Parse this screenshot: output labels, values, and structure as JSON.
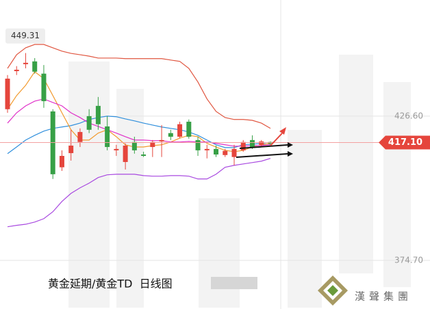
{
  "chart_data": {
    "type": "candlestick",
    "categories": [
      null,
      null,
      null,
      null,
      null,
      null,
      null,
      null,
      null,
      null,
      null,
      null,
      null,
      null,
      null,
      null,
      null,
      null,
      null,
      null,
      null,
      null,
      null,
      null,
      null,
      null,
      null,
      null,
      null,
      null
    ],
    "open": [
      429.1,
      442.8,
      445.3,
      446.3,
      441.9,
      428.3,
      408.2,
      413.3,
      417.3,
      426.6,
      430.3,
      422.9,
      414.3,
      410.1,
      417.3,
      412.8,
      415.5,
      417.5,
      420.5,
      419.2,
      424.6,
      418.0,
      414.3,
      414.8,
      412.6,
      411.9,
      414.3,
      418.0,
      416.3,
      417.3
    ],
    "high": [
      441.4,
      444.6,
      449.31,
      447.5,
      445.0,
      429.1,
      414.3,
      421.7,
      422.2,
      429.1,
      433.5,
      426.6,
      416.3,
      416.8,
      419.2,
      413.8,
      418.0,
      423.4,
      421.7,
      424.6,
      425.4,
      419.2,
      416.3,
      416.0,
      414.8,
      416.3,
      418.0,
      419.7,
      418.0,
      417.5
    ],
    "low": [
      427.8,
      441.4,
      443.8,
      441.9,
      429.6,
      404.0,
      406.9,
      410.6,
      415.5,
      420.5,
      421.7,
      414.3,
      412.3,
      407.4,
      413.1,
      411.9,
      411.9,
      411.9,
      418.0,
      418.7,
      418.5,
      412.3,
      411.4,
      411.9,
      411.9,
      408.9,
      413.8,
      414.8,
      415.8,
      416.3
    ],
    "close": [
      440.1,
      443.3,
      445.8,
      442.6,
      432.0,
      405.7,
      412.3,
      416.0,
      420.9,
      421.7,
      423.7,
      415.5,
      414.8,
      416.0,
      414.3,
      412.3,
      417.3,
      418.0,
      419.2,
      423.7,
      419.2,
      414.3,
      414.8,
      412.8,
      414.1,
      414.8,
      417.3,
      415.5,
      417.5,
      416.8
    ],
    "up_color": "#e5453c",
    "down_color": "#37a046",
    "overlays": [
      {
        "color": "#e0553f",
        "values": [
          443.8,
          448.7,
          451.2,
          452.4,
          452.4,
          451.2,
          450.0,
          449.2,
          448.7,
          448.2,
          447.5,
          447.5,
          447.5,
          447.3,
          447.3,
          447.3,
          447.3,
          447.3,
          446.8,
          446.3,
          443.8,
          438.9,
          432.8,
          428.3,
          426.1,
          425.4,
          425.4,
          425.1,
          424.1,
          422.2
        ]
      },
      {
        "color": "#2f8fdc",
        "values": [
          413.1,
          415.5,
          418.0,
          419.7,
          421.2,
          422.2,
          422.7,
          423.2,
          424.1,
          425.4,
          426.1,
          426.6,
          426.4,
          425.6,
          424.9,
          424.1,
          423.4,
          422.7,
          422.2,
          421.7,
          420.9,
          419.7,
          418.0,
          416.3,
          415.3,
          415.3,
          416.3,
          416.5,
          416.8,
          416.5
        ]
      },
      {
        "color": "#a848e0",
        "values": [
          386.8,
          387.3,
          387.7,
          388.5,
          389.7,
          392.2,
          395.9,
          398.8,
          400.8,
          402.5,
          404.5,
          405.5,
          405.7,
          405.7,
          405.7,
          405.2,
          405.0,
          405.0,
          405.2,
          405.2,
          405.0,
          404.0,
          404.0,
          405.7,
          408.2,
          408.9,
          409.4,
          409.9,
          410.4,
          411.4
        ]
      },
      {
        "color": "#f29a2e",
        "values": [
          429.1,
          434.0,
          437.7,
          442.6,
          440.1,
          434.0,
          427.8,
          421.7,
          418.0,
          418.0,
          420.5,
          421.7,
          419.2,
          416.3,
          415.5,
          415.5,
          416.0,
          416.3,
          417.3,
          418.7,
          419.7,
          419.2,
          416.8,
          415.5,
          414.3,
          413.8,
          414.3,
          415.5,
          416.3,
          416.8
        ]
      },
      {
        "color": "#e030c8",
        "values": [
          424.1,
          427.8,
          430.3,
          432.0,
          432.8,
          431.5,
          430.3,
          427.8,
          426.1,
          424.1,
          422.9,
          421.7,
          420.5,
          419.2,
          418.0,
          418.0,
          417.8,
          417.8,
          417.3,
          417.3,
          417.5,
          417.3,
          417.3,
          416.8,
          416.3,
          415.8,
          415.8,
          416.0,
          416.0,
          416.3
        ]
      }
    ],
    "ylim": [
      357.2,
      468.4
    ],
    "yticks": [
      {
        "value": 426.6,
        "label": "426.60"
      },
      {
        "value": 374.7,
        "label": "374.70"
      }
    ],
    "current_price": {
      "value": 417.1,
      "label": "417.10"
    },
    "annotations": [
      {
        "value": 449.31,
        "label": "449.31"
      }
    ],
    "caption": "黄金延期/黄金TD  日线图",
    "logo": "漢聲集團"
  }
}
